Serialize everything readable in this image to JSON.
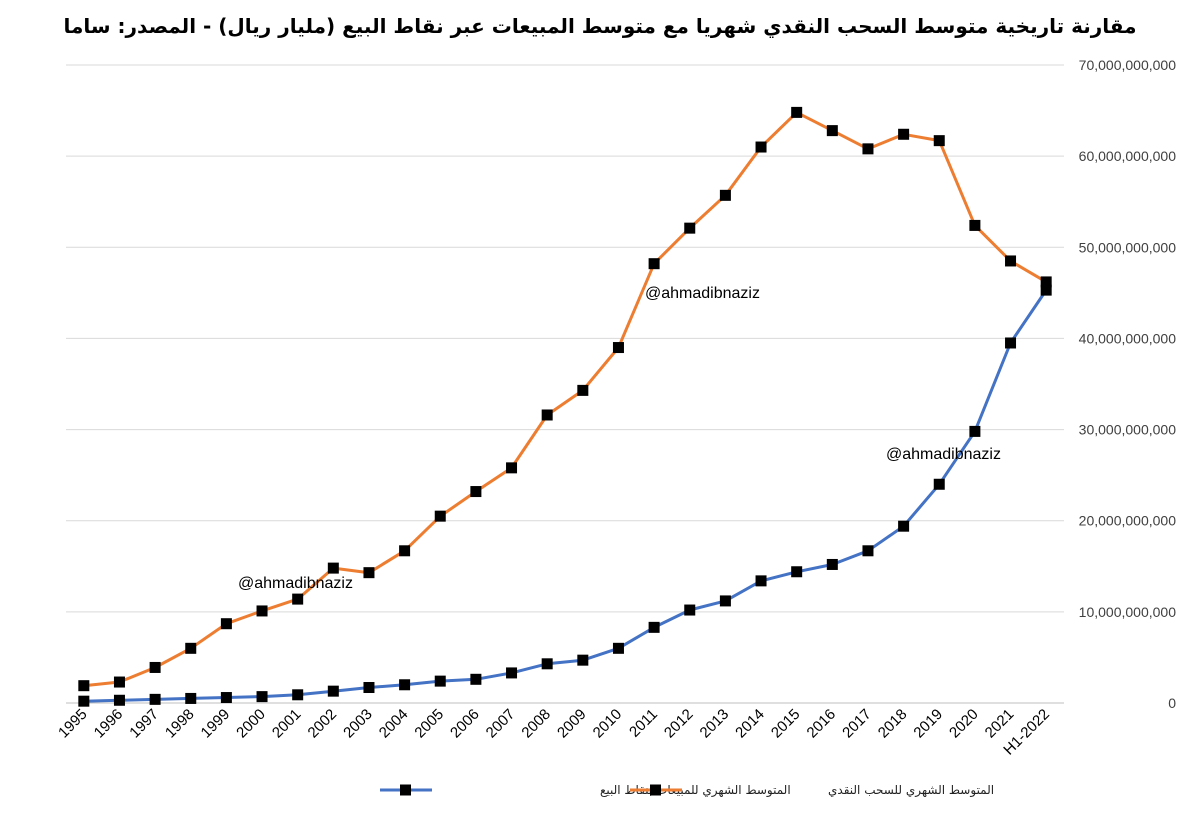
{
  "chart_data": {
    "type": "line",
    "title": "مقارنة تاريخية متوسط السحب النقدي شهريا مع متوسط المبيعات عبر نقاط البيع (مليار ريال) - المصدر: ساما",
    "categories": [
      "1995",
      "1996",
      "1997",
      "1998",
      "1999",
      "2000",
      "2001",
      "2002",
      "2003",
      "2004",
      "2005",
      "2006",
      "2007",
      "2008",
      "2009",
      "2010",
      "2011",
      "2012",
      "2013",
      "2014",
      "2015",
      "2016",
      "2017",
      "2018",
      "2019",
      "2020",
      "2021",
      "H1-2022"
    ],
    "series": [
      {
        "name": "المتوسط الشهري للسحب النقدي",
        "color": "#ED7D31",
        "values": [
          1900000000,
          2300000000,
          3900000000,
          6000000000,
          8700000000,
          10100000000,
          11400000000,
          14800000000,
          14300000000,
          16700000000,
          20500000000,
          23200000000,
          25800000000,
          31600000000,
          34300000000,
          39000000000,
          48200000000,
          52100000000,
          55700000000,
          61000000000,
          64800000000,
          62800000000,
          60800000000,
          62400000000,
          61700000000,
          52400000000,
          48500000000,
          46200000000
        ]
      },
      {
        "name": "المتوسط الشهري للمبيعات بنقاط البيع",
        "color": "#4472C4",
        "values": [
          200000000,
          300000000,
          400000000,
          500000000,
          600000000,
          700000000,
          900000000,
          1300000000,
          1700000000,
          2000000000,
          2400000000,
          2600000000,
          3300000000,
          4300000000,
          4700000000,
          6000000000,
          8300000000,
          10200000000,
          11200000000,
          13400000000,
          14400000000,
          15200000000,
          16700000000,
          19400000000,
          24000000000,
          29800000000,
          39500000000,
          45300000000
        ]
      }
    ],
    "y_ticks": [
      "0",
      "10,000,000,000",
      "20,000,000,000",
      "30,000,000,000",
      "40,000,000,000",
      "50,000,000,000",
      "60,000,000,000",
      "70,000,000,000"
    ],
    "ylim": [
      0,
      70000000000
    ],
    "grid": true,
    "legend": "bottom",
    "watermarks": [
      "@ahmadibnaziz",
      "@ahmadibnaziz",
      "@ahmadibnaziz"
    ]
  }
}
